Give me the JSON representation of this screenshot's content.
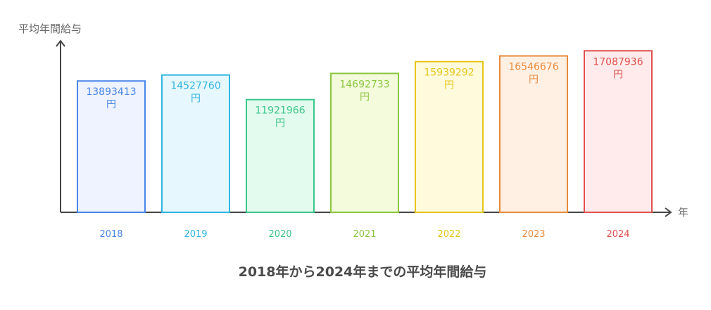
{
  "chart_data": {
    "type": "bar",
    "title": "2018年から2024年までの平均年間給与",
    "ylabel": "平均年間給与",
    "xlabel": "年",
    "unit": "円",
    "categories": [
      "2018",
      "2019",
      "2020",
      "2021",
      "2022",
      "2023",
      "2024"
    ],
    "values": [
      13893413,
      14527760,
      11921966,
      14692733,
      15939292,
      16546676,
      17087936
    ],
    "ylim": [
      0,
      18000000
    ],
    "grid": false,
    "legend": "none",
    "colors": {
      "axis": "#444444",
      "bar_stroke": [
        "#4a86e8",
        "#2fb6e0",
        "#3cc68a",
        "#8cc63f",
        "#e6c61a",
        "#e88a3c",
        "#e05050"
      ],
      "bar_fill": [
        "#eef3ff",
        "#e6f7fd",
        "#e3fbee",
        "#f3fbdc",
        "#fffadc",
        "#fff0e3",
        "#ffebeb"
      ],
      "value_text": [
        "#4a86e8",
        "#2fb6e0",
        "#3cc68a",
        "#8cc63f",
        "#e6c61a",
        "#e88a3c",
        "#e05050"
      ]
    }
  }
}
